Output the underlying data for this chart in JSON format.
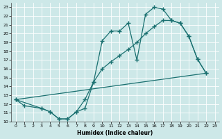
{
  "xlabel": "Humidex (Indice chaleur)",
  "bg_color": "#cde8e8",
  "grid_color": "#b8d8d8",
  "line_color": "#1a7070",
  "xlim": [
    -0.5,
    23.5
  ],
  "ylim": [
    10,
    23.5
  ],
  "xticks": [
    0,
    1,
    2,
    3,
    4,
    5,
    6,
    7,
    8,
    9,
    10,
    11,
    12,
    13,
    14,
    15,
    16,
    17,
    18,
    19,
    20,
    21,
    22,
    23
  ],
  "yticks": [
    10,
    11,
    12,
    13,
    14,
    15,
    16,
    17,
    18,
    19,
    20,
    21,
    22,
    23
  ],
  "curve1_x": [
    0,
    1,
    3,
    4,
    5,
    6,
    7,
    8,
    9,
    10,
    11,
    12,
    13,
    14,
    15,
    16,
    17,
    18,
    19,
    20,
    21,
    22
  ],
  "curve1_y": [
    12.5,
    11.8,
    11.5,
    11.1,
    10.3,
    10.3,
    11.1,
    11.5,
    14.5,
    19.2,
    20.3,
    20.3,
    21.2,
    17.0,
    22.2,
    23.0,
    22.8,
    21.5,
    21.2,
    19.7,
    17.1,
    15.5
  ],
  "curve2_x": [
    0,
    3,
    4,
    5,
    6,
    7,
    8,
    9,
    10,
    11,
    12,
    13,
    14,
    15,
    16,
    17,
    18,
    19,
    20,
    21,
    22
  ],
  "curve2_y": [
    12.5,
    11.5,
    11.1,
    10.3,
    10.3,
    11.1,
    12.5,
    14.5,
    16.0,
    16.8,
    17.5,
    18.2,
    19.0,
    20.0,
    20.8,
    21.5,
    21.5,
    21.2,
    19.7,
    17.1,
    15.5
  ],
  "line3_x": [
    0,
    22
  ],
  "line3_y": [
    12.5,
    15.5
  ]
}
